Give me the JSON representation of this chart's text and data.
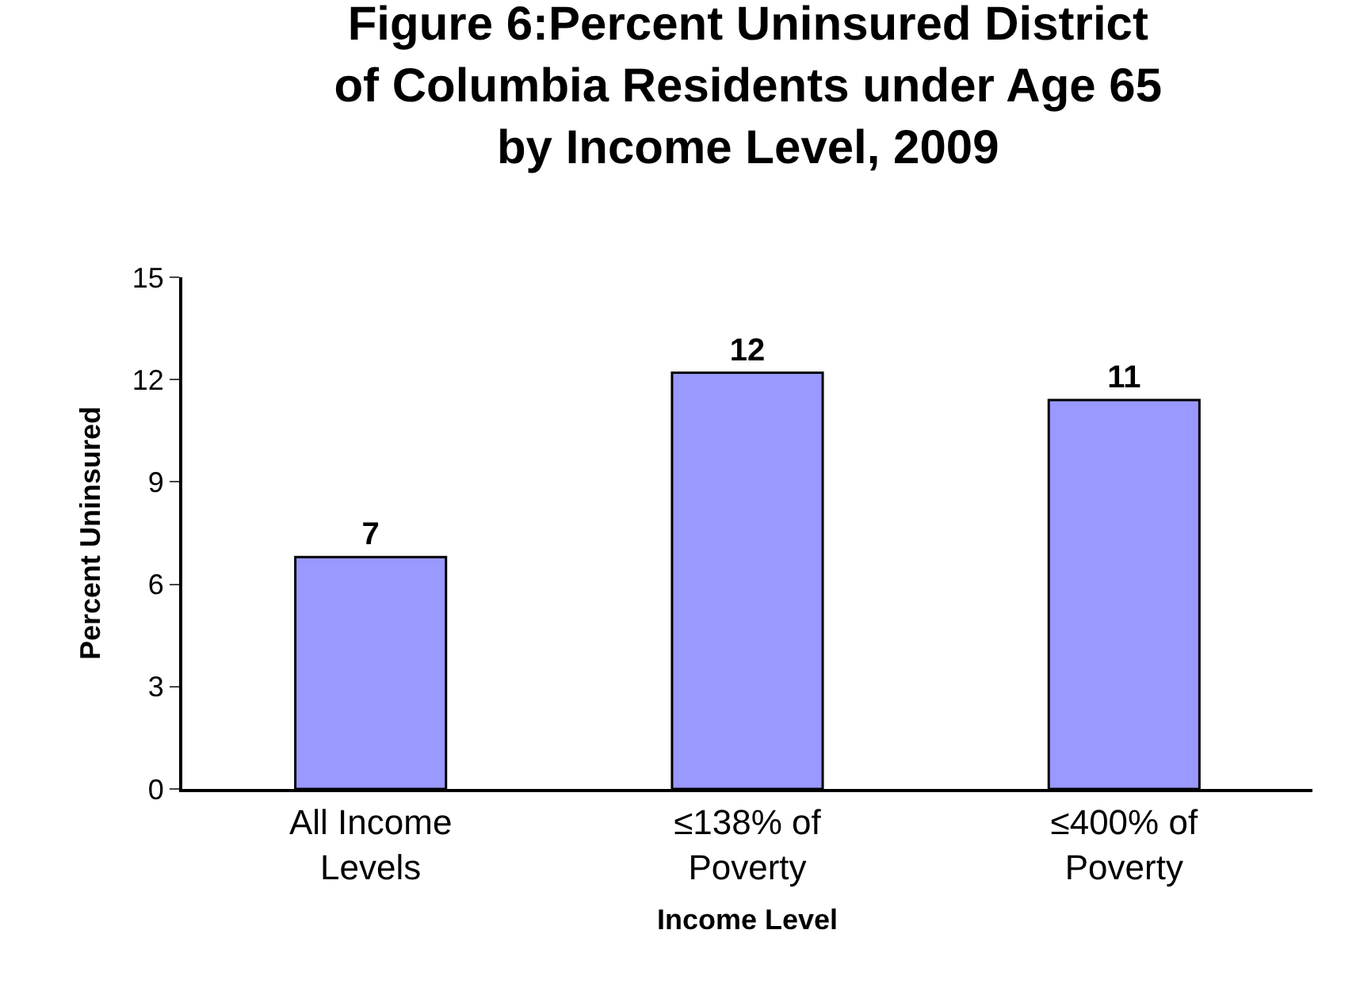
{
  "chart_data": {
    "type": "bar",
    "title": "Figure 6:Percent Uninsured District\nof Columbia Residents under Age 65\nby Income Level, 2009",
    "xlabel": "Income Level",
    "ylabel": "Percent Uninsured",
    "categories": [
      "All Income\nLevels",
      "≤138% of\nPoverty",
      "≤400% of\nPoverty"
    ],
    "values": [
      6.8,
      12.2,
      11.4
    ],
    "value_labels": [
      "7",
      "12",
      "11"
    ],
    "color": "#9999ff",
    "ylim": [
      0,
      15
    ],
    "yticks": [
      0,
      3,
      6,
      9,
      12,
      15
    ],
    "legend": false
  }
}
